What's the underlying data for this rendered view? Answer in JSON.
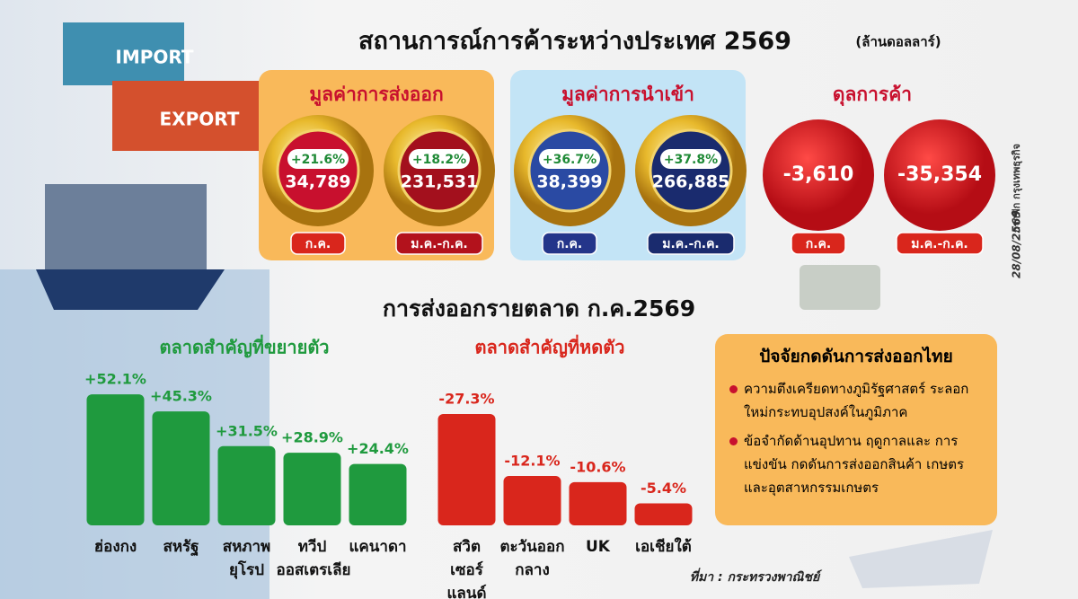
{
  "header": {
    "title": "สถานการณ์การค้าระหว่างประเทศ 2569",
    "unit": "(ล้านดอลลาร์)"
  },
  "illustration": {
    "labels": [
      "IMPORT",
      "EXPORT"
    ]
  },
  "side": {
    "date": "28/08/2569",
    "credit": "กราฟิก กรุงเทพธุรกิจ"
  },
  "panels": [
    {
      "title": "มูลค่าการส่งออก",
      "items": [
        {
          "change": "+21.6%",
          "value": "34,789",
          "period": "ก.ค."
        },
        {
          "change": "+18.2%",
          "value": "231,531",
          "period": "ม.ค.-ก.ค."
        }
      ]
    },
    {
      "title": "มูลค่าการนำเข้า",
      "items": [
        {
          "change": "+36.7%",
          "value": "38,399",
          "period": "ก.ค."
        },
        {
          "change": "+37.8%",
          "value": "266,885",
          "period": "ม.ค.-ก.ค."
        }
      ]
    },
    {
      "title": "ดุลการค้า",
      "items": [
        {
          "value": "-3,610",
          "period": "ก.ค."
        },
        {
          "value": "-35,354",
          "period": "ม.ค.-ก.ค."
        }
      ]
    }
  ],
  "section_title": "การส่งออกรายตลาด ก.ค.2569",
  "chart_data": [
    {
      "type": "bar",
      "title": "ตลาดสำคัญที่ขยายตัว",
      "categories": [
        "ฮ่องกง",
        "สหรัฐ",
        "สหภาพ\nยุโรป",
        "ทวีป\nออสเตรเลีย",
        "แคนาดา"
      ],
      "values": [
        52.1,
        45.3,
        31.5,
        28.9,
        24.4
      ],
      "value_labels": [
        "+52.1%",
        "+45.3%",
        "+31.5%",
        "+28.9%",
        "+24.4%"
      ],
      "color": "#1f9a3e",
      "ylim": [
        0,
        60
      ]
    },
    {
      "type": "bar",
      "title": "ตลาดสำคัญที่หดตัว",
      "categories": [
        "สวิต\nเซอร์แลนด์",
        "ตะวันออก\nกลาง",
        "UK",
        "เอเชียใต้"
      ],
      "values": [
        -27.3,
        -12.1,
        -10.6,
        -5.4
      ],
      "value_labels": [
        "-27.3%",
        "-12.1%",
        "-10.6%",
        "-5.4%"
      ],
      "color": "#d9261c",
      "ylim": [
        0,
        -37
      ]
    }
  ],
  "factors": {
    "title": "ปัจจัยกดดันการส่งออกไทย",
    "bullets": [
      "ความตึงเครียดทางภูมิรัฐศาสตร์ ระลอกใหม่กระทบอุปสงค์ในภูมิภาค",
      "ข้อจำกัดด้านอุปทาน ฤดูกาลและ การแข่งขัน กดดันการส่งออกสินค้า เกษตรและอุตสาหกรรมเกษตร"
    ]
  },
  "source": "ที่มา : กระทรวงพาณิชย์"
}
